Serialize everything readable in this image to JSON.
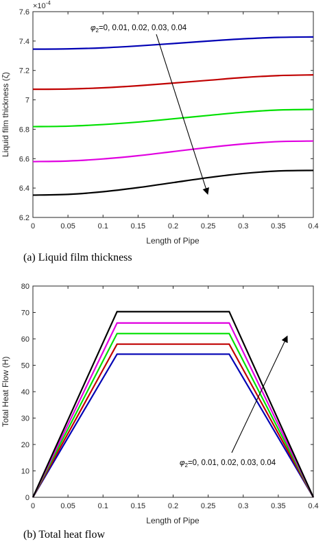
{
  "chart_data": [
    {
      "type": "line",
      "caption": "(a)  Liquid film thickness",
      "xlabel": "Length of Pipe",
      "ylabel": "Liquid film thickness (ζ)",
      "y_exponent": "×10",
      "y_exponent_power": "-4",
      "xlim": [
        0,
        0.4
      ],
      "ylim": [
        6.2,
        7.6
      ],
      "xticks": [
        "0",
        "0.05",
        "0.1",
        "0.15",
        "0.2",
        "0.25",
        "0.3",
        "0.35",
        "0.4"
      ],
      "yticks": [
        "6.2",
        "6.4",
        "6.6",
        "6.8",
        "7",
        "7.2",
        "7.4",
        "7.6"
      ],
      "annotation": {
        "prefix": "φ",
        "subscript": "2",
        "text": "=0, 0.01, 0.02, 0.03, 0.04"
      },
      "x": [
        0,
        0.05,
        0.1,
        0.15,
        0.2,
        0.25,
        0.3,
        0.35,
        0.4
      ],
      "series": [
        {
          "color": "#0000b4",
          "values": [
            7.345,
            7.347,
            7.354,
            7.367,
            7.383,
            7.4,
            7.415,
            7.425,
            7.428
          ]
        },
        {
          "color": "#c00000",
          "values": [
            7.072,
            7.074,
            7.082,
            7.096,
            7.114,
            7.133,
            7.152,
            7.165,
            7.17
          ]
        },
        {
          "color": "#00e000",
          "values": [
            6.818,
            6.821,
            6.832,
            6.849,
            6.871,
            6.894,
            6.916,
            6.931,
            6.935
          ]
        },
        {
          "color": "#e000e0",
          "values": [
            6.58,
            6.584,
            6.598,
            6.62,
            6.648,
            6.676,
            6.7,
            6.716,
            6.72
          ]
        },
        {
          "color": "#000000",
          "values": [
            6.352,
            6.357,
            6.375,
            6.403,
            6.437,
            6.471,
            6.499,
            6.516,
            6.52
          ]
        }
      ]
    },
    {
      "type": "line",
      "caption": "(b)  Total heat flow",
      "xlabel": "Length of Pipe",
      "ylabel": "Total Heat Flow (H)",
      "xlim": [
        0,
        0.4
      ],
      "ylim": [
        0,
        80
      ],
      "xticks": [
        "0",
        "0.05",
        "0.1",
        "0.15",
        "0.2",
        "0.25",
        "0.3",
        "0.35",
        "0.4"
      ],
      "yticks": [
        "0",
        "10",
        "20",
        "30",
        "40",
        "50",
        "60",
        "70",
        "80"
      ],
      "annotation": {
        "prefix": "φ",
        "subscript": "2",
        "text": "=0, 0.01, 0.02, 0.03, 0.04"
      },
      "x": [
        0,
        0.12,
        0.28,
        0.4
      ],
      "series": [
        {
          "color": "#0000b4",
          "values": [
            0,
            54.2,
            54.2,
            0
          ]
        },
        {
          "color": "#c00000",
          "values": [
            0,
            58.0,
            58.0,
            0
          ]
        },
        {
          "color": "#00e000",
          "values": [
            0,
            62.0,
            62.0,
            0
          ]
        },
        {
          "color": "#e000e0",
          "values": [
            0,
            66.0,
            66.0,
            0
          ]
        },
        {
          "color": "#000000",
          "values": [
            0,
            70.3,
            70.3,
            0
          ]
        }
      ]
    }
  ]
}
